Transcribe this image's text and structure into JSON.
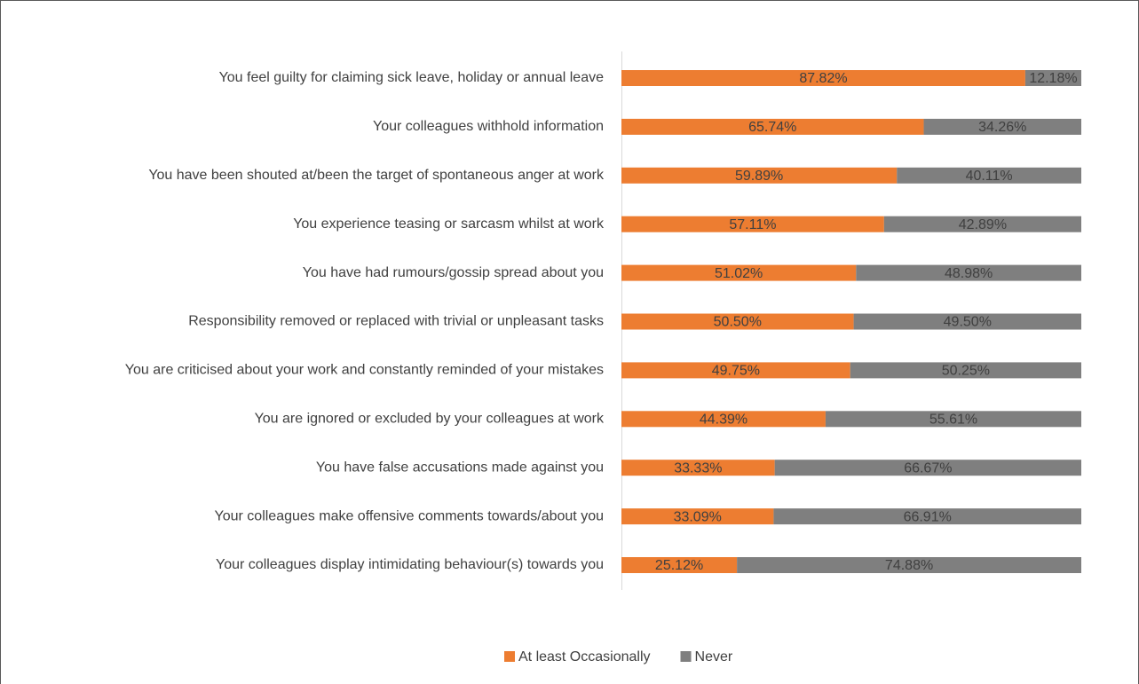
{
  "chart_data": {
    "type": "stacked-bar-horizontal",
    "categories": [
      "You feel guilty for claiming sick leave, holiday or annual leave",
      "Your colleagues withhold information",
      "You have been shouted at/been the target of spontaneous anger at work",
      "You experience teasing or sarcasm whilst at work",
      "You have had rumours/gossip spread about you",
      "Responsibility removed or replaced with trivial or unpleasant tasks",
      "You are criticised about your work and constantly reminded of your mistakes",
      "You are ignored or excluded by your colleagues at work",
      "You have false accusations made against you",
      "Your colleagues make offensive comments towards/about you",
      "Your colleagues display intimidating behaviour(s) towards you"
    ],
    "series": [
      {
        "name": "At least Occasionally",
        "color": "#ED7D31",
        "values": [
          87.82,
          65.74,
          59.89,
          57.11,
          51.02,
          50.5,
          49.75,
          44.39,
          33.33,
          33.09,
          25.12
        ],
        "value_labels": [
          "87.82%",
          "65.74%",
          "59.89%",
          "57.11%",
          "51.02%",
          "50.50%",
          "49.75%",
          "44.39%",
          "33.33%",
          "33.09%",
          "25.12%"
        ]
      },
      {
        "name": "Never",
        "color": "#7F7F7F",
        "values": [
          12.18,
          34.26,
          40.11,
          42.89,
          48.98,
          49.5,
          50.25,
          55.61,
          66.67,
          66.91,
          74.88
        ],
        "value_labels": [
          "12.18%",
          "34.26%",
          "40.11%",
          "42.89%",
          "48.98%",
          "49.50%",
          "50.25%",
          "55.61%",
          "66.67%",
          "66.91%",
          "74.88%"
        ]
      }
    ],
    "xlim": [
      0,
      100
    ],
    "legend": "bottom"
  }
}
